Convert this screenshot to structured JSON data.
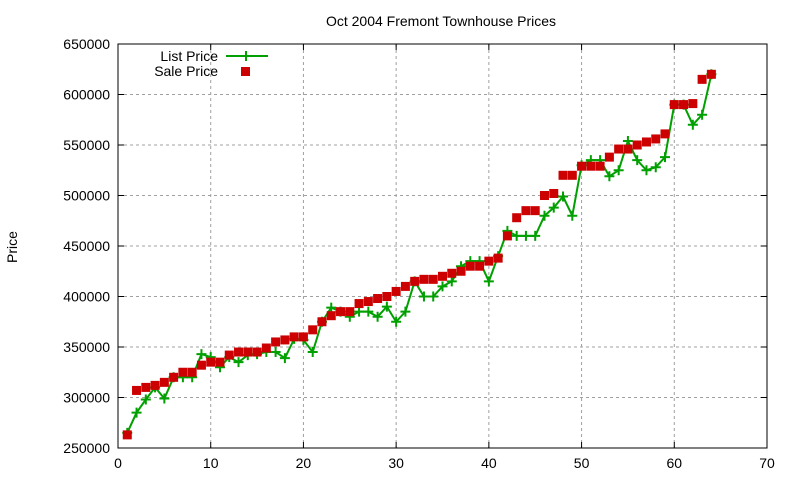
{
  "chart_data": {
    "type": "line",
    "title": "Oct 2004 Fremont Townhouse Prices",
    "xlabel": "",
    "ylabel": "Price",
    "xlim": [
      0,
      70
    ],
    "ylim": [
      250000,
      650000
    ],
    "xticks": [
      0,
      10,
      20,
      30,
      40,
      50,
      60,
      70
    ],
    "yticks": [
      250000,
      300000,
      350000,
      400000,
      450000,
      500000,
      550000,
      600000,
      650000
    ],
    "grid": true,
    "legend_position": "top-left",
    "x": [
      1,
      2,
      3,
      4,
      5,
      6,
      7,
      8,
      9,
      10,
      11,
      12,
      13,
      14,
      15,
      16,
      17,
      18,
      19,
      20,
      21,
      22,
      23,
      24,
      25,
      26,
      27,
      28,
      29,
      30,
      31,
      32,
      33,
      34,
      35,
      36,
      37,
      38,
      39,
      40,
      41,
      42,
      43,
      44,
      45,
      46,
      47,
      48,
      49,
      50,
      51,
      52,
      53,
      54,
      55,
      56,
      57,
      58,
      59,
      60,
      61,
      62,
      63,
      64
    ],
    "series": [
      {
        "name": "List Price",
        "style": "linespoints",
        "marker": "plus",
        "color": "#00a000",
        "values": [
          265000,
          285000,
          298000,
          310000,
          299000,
          320000,
          320000,
          320000,
          343000,
          340000,
          330000,
          340000,
          335000,
          342000,
          343000,
          345000,
          345000,
          339000,
          358000,
          357000,
          345000,
          375000,
          389000,
          385000,
          380000,
          385000,
          385000,
          380000,
          390000,
          375000,
          385000,
          415000,
          400000,
          400000,
          410000,
          415000,
          430000,
          435000,
          435000,
          415000,
          440000,
          465000,
          460000,
          460000,
          460000,
          480000,
          488000,
          499000,
          480000,
          530000,
          535000,
          535000,
          519000,
          525000,
          554000,
          535000,
          525000,
          528000,
          538000,
          590000,
          590000,
          570000,
          580000,
          620000
        ]
      },
      {
        "name": "Sale Price",
        "style": "points",
        "marker": "square",
        "color": "#cc0000",
        "values": [
          263000,
          307000,
          310000,
          312000,
          315000,
          320000,
          325000,
          325000,
          332000,
          335000,
          335000,
          342000,
          345000,
          345000,
          345000,
          349000,
          355000,
          357000,
          360000,
          360000,
          367000,
          375000,
          381000,
          385000,
          385000,
          393000,
          395000,
          398000,
          400000,
          405000,
          410000,
          415000,
          417000,
          417000,
          420000,
          423000,
          425000,
          430000,
          430000,
          435000,
          438000,
          460000,
          478000,
          485000,
          485000,
          500000,
          502000,
          520000,
          520000,
          529000,
          529000,
          529000,
          538000,
          546000,
          546000,
          550000,
          553000,
          556000,
          561000,
          590000,
          590000,
          591000,
          615000,
          620000
        ]
      }
    ]
  }
}
